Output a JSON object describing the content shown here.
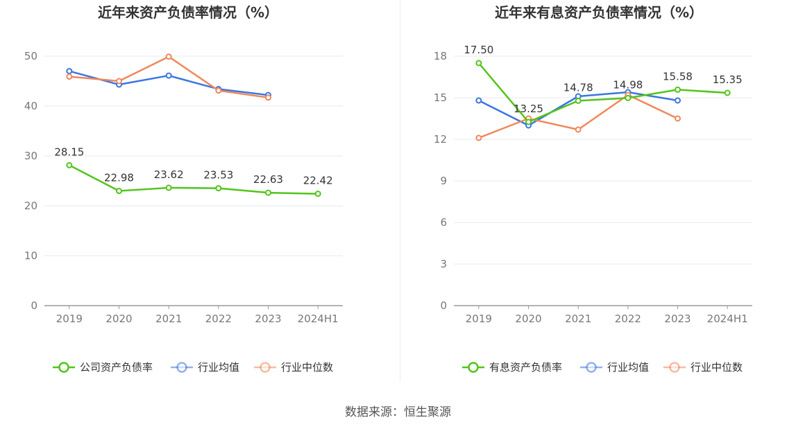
{
  "charts": [
    {
      "type": "line",
      "title": "近年来资产负债率情况（%）",
      "categories": [
        "2019",
        "2020",
        "2021",
        "2022",
        "2023",
        "2024H1"
      ],
      "ylim": [
        0,
        50
      ],
      "yticks": [
        0,
        10,
        20,
        30,
        40,
        50
      ],
      "grid": true,
      "legend_position": "bottom",
      "series": [
        {
          "name": "公司资产负债率",
          "color": "#52c41a",
          "values": [
            28.15,
            22.98,
            23.62,
            23.53,
            22.63,
            22.42
          ],
          "labels": [
            "28.15",
            "22.98",
            "23.62",
            "23.53",
            "22.63",
            "22.42"
          ]
        },
        {
          "name": "行业均值",
          "color": "#3a75e0",
          "values": [
            47.0,
            44.3,
            46.1,
            43.4,
            42.2,
            null
          ]
        },
        {
          "name": "行业中位数",
          "color": "#f0875a",
          "values": [
            45.9,
            45.0,
            49.9,
            43.1,
            41.7,
            null
          ]
        }
      ]
    },
    {
      "type": "line",
      "title": "近年来有息资产负债率情况（%）",
      "categories": [
        "2019",
        "2020",
        "2021",
        "2022",
        "2023",
        "2024H1"
      ],
      "ylim": [
        0,
        18
      ],
      "yticks": [
        0,
        3,
        6,
        9,
        12,
        15,
        18
      ],
      "grid": true,
      "legend_position": "bottom",
      "series": [
        {
          "name": "有息资产负债率",
          "color": "#52c41a",
          "values": [
            17.5,
            13.25,
            14.78,
            14.98,
            15.58,
            15.35
          ],
          "labels": [
            "17.50",
            "13.25",
            "14.78",
            "14.98",
            "15.58",
            "15.35"
          ]
        },
        {
          "name": "行业均值",
          "color": "#3a75e0",
          "values": [
            14.8,
            13.0,
            15.1,
            15.4,
            14.8,
            null
          ]
        },
        {
          "name": "行业中位数",
          "color": "#f0875a",
          "values": [
            12.1,
            13.5,
            12.7,
            15.2,
            13.5,
            null
          ]
        }
      ]
    }
  ],
  "source": "数据来源：恒生聚源"
}
